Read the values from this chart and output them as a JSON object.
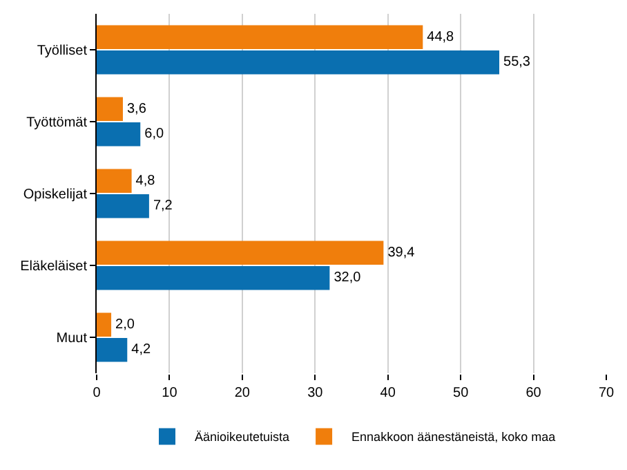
{
  "chart_data": {
    "type": "bar",
    "orientation": "horizontal",
    "categories": [
      "Työlliset",
      "Työttömät",
      "Opiskelijat",
      "Eläkeläiset",
      "Muut"
    ],
    "series": [
      {
        "name": "Äänioikeutetuista",
        "color": "#0a6fb0",
        "values": [
          55.3,
          6.0,
          7.2,
          32.0,
          4.2
        ],
        "value_labels": [
          "55,3",
          "6,0",
          "7,2",
          "32,0",
          "4,2"
        ]
      },
      {
        "name": "Ennakkoon äänestäneistä, koko maa",
        "color": "#f07e0c",
        "values": [
          44.8,
          3.6,
          4.8,
          39.4,
          2.0
        ],
        "value_labels": [
          "44,8",
          "3,6",
          "4,8",
          "39,4",
          "2,0"
        ]
      }
    ],
    "xlim": [
      0,
      70
    ],
    "xticks": [
      0,
      10,
      20,
      30,
      40,
      50,
      60,
      70
    ],
    "grid": "x",
    "legend": "bottom"
  }
}
